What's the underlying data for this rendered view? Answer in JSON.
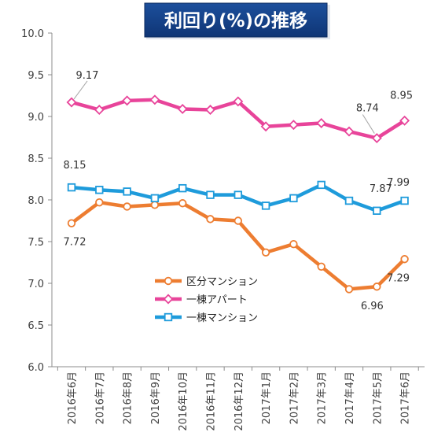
{
  "chart_data": {
    "type": "line",
    "title": "利回り(%)の推移",
    "categories": [
      "2016年6月",
      "2016年7月",
      "2016年8月",
      "2016年9月",
      "2016年10月",
      "2016年11月",
      "2016年12月",
      "2017年1月",
      "2017年2月",
      "2017年3月",
      "2017年4月",
      "2017年5月",
      "2017年6月"
    ],
    "ylim": [
      6.0,
      10.0
    ],
    "yticks": [
      "6.0",
      "6.5",
      "7.0",
      "7.5",
      "8.0",
      "8.5",
      "9.0",
      "9.5",
      "10.0"
    ],
    "grid": false,
    "legend_position": "center-left",
    "series": [
      {
        "name": "区分マンション",
        "color": "#ED7D31",
        "marker": "circle",
        "values": [
          7.72,
          7.97,
          7.92,
          7.94,
          7.96,
          7.77,
          7.75,
          7.37,
          7.47,
          7.2,
          6.93,
          6.96,
          7.29
        ]
      },
      {
        "name": "一棟アパート",
        "color": "#E8449A",
        "marker": "diamond",
        "values": [
          9.17,
          9.08,
          9.19,
          9.2,
          9.09,
          9.08,
          9.18,
          8.88,
          8.9,
          8.92,
          8.82,
          8.74,
          8.95
        ]
      },
      {
        "name": "一棟マンション",
        "color": "#1E9BDB",
        "marker": "square",
        "values": [
          8.15,
          8.12,
          8.1,
          8.02,
          8.14,
          8.06,
          8.06,
          7.93,
          8.02,
          8.18,
          7.99,
          7.87,
          7.99
        ]
      }
    ],
    "annotations": [
      {
        "text": "9.17",
        "series": 1,
        "index": 0
      },
      {
        "text": "8.74",
        "series": 1,
        "index": 11
      },
      {
        "text": "8.95",
        "series": 1,
        "index": 12
      },
      {
        "text": "8.15",
        "series": 2,
        "index": 0
      },
      {
        "text": "7.87",
        "series": 2,
        "index": 11
      },
      {
        "text": "7.99",
        "series": 2,
        "index": 12
      },
      {
        "text": "7.72",
        "series": 0,
        "index": 0
      },
      {
        "text": "6.96",
        "series": 0,
        "index": 11
      },
      {
        "text": "7.29",
        "series": 0,
        "index": 12
      }
    ]
  }
}
